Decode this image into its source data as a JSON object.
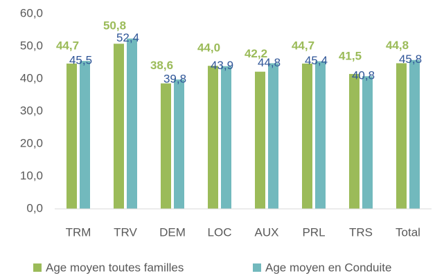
{
  "chart_data": {
    "type": "bar",
    "categories": [
      "TRM",
      "TRV",
      "DEM",
      "LOC",
      "AUX",
      "PRL",
      "TRS",
      "Total"
    ],
    "series": [
      {
        "name": "Age moyen toutes familles",
        "color": "#9bbb59",
        "values": [
          44.7,
          50.8,
          38.6,
          44.0,
          42.2,
          44.7,
          41.5,
          44.8
        ],
        "value_labels": [
          "44,7",
          "50,8",
          "38,6",
          "44,0",
          "42,2",
          "44,7",
          "41,5",
          "44,8"
        ]
      },
      {
        "name": "Age moyen en Conduite",
        "color": "#72b9bd",
        "values": [
          45.5,
          52.4,
          39.8,
          43.9,
          44.8,
          45.4,
          40.8,
          45.8
        ],
        "value_labels": [
          "45,5",
          "52,4",
          "39,8",
          "43,9",
          "44,8",
          "45,4",
          "40,8",
          "45,8"
        ]
      }
    ],
    "ylim": [
      0,
      60
    ],
    "yticks": [
      {
        "value": 0,
        "label": "0,0"
      },
      {
        "value": 10,
        "label": "10,0"
      },
      {
        "value": 20,
        "label": "20,0"
      },
      {
        "value": 30,
        "label": "30,0"
      },
      {
        "value": 40,
        "label": "40,0"
      },
      {
        "value": 50,
        "label": "50,0"
      },
      {
        "value": 60,
        "label": "60,0"
      }
    ],
    "grid": false,
    "legend": "bottom"
  }
}
